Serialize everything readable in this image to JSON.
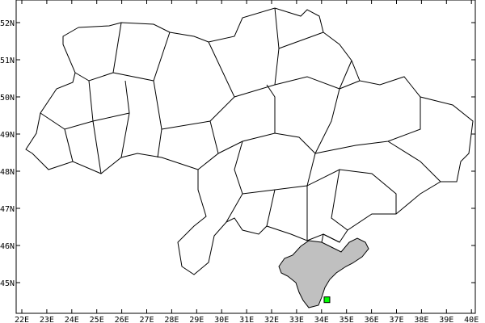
{
  "map": {
    "lon_labels": [
      "22E",
      "23E",
      "24E",
      "25E",
      "26E",
      "27E",
      "28E",
      "29E",
      "30E",
      "31E",
      "32E",
      "33E",
      "34E",
      "35E",
      "36E",
      "37E",
      "38E",
      "39E",
      "40E"
    ],
    "lat_labels": [
      "52N",
      "51N",
      "50N",
      "49N",
      "48N",
      "47N",
      "46N",
      "45N"
    ],
    "lon_range": [
      21.8,
      40.6
    ],
    "lat_range": [
      44.2,
      52.6
    ],
    "highlighted_region": "Crimea",
    "highlight_fill": "#c0c0c0",
    "marker": {
      "lon": 34.2,
      "lat": 44.55,
      "color": "#00ff00"
    },
    "border_color": "#000000"
  }
}
